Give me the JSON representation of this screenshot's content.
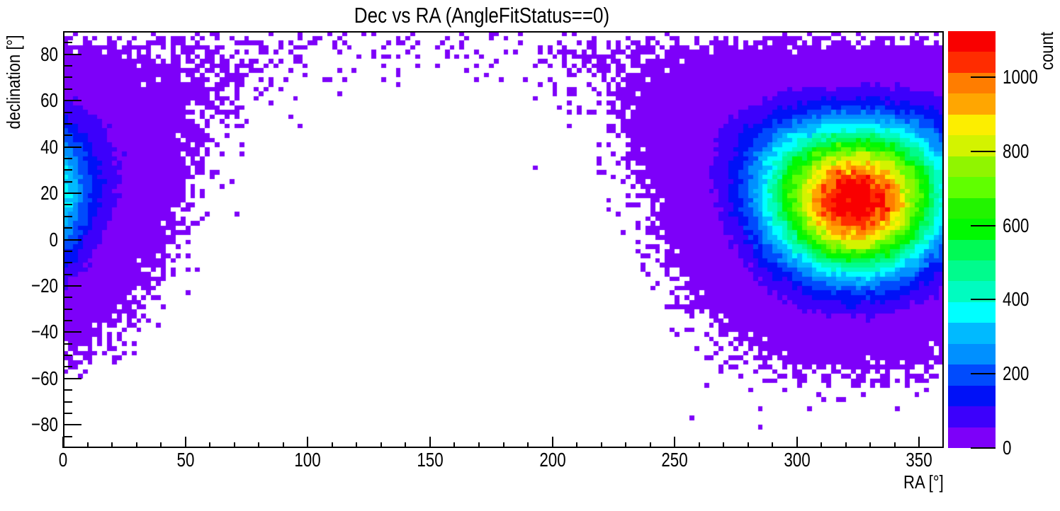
{
  "title": "Dec vs RA (AngleFitStatus==0)",
  "chart_data": {
    "type": "heatmap",
    "title": "Dec vs RA (AngleFitStatus==0)",
    "xlabel": "RA [°]",
    "ylabel": "declination [°]",
    "zlabel": "count",
    "xlim": [
      0,
      360
    ],
    "ylim": [
      -90,
      90
    ],
    "zlim": [
      0,
      1124
    ],
    "grid": false,
    "bins": {
      "x": 180,
      "y": 90,
      "x_width_deg": 2,
      "y_width_deg": 2
    },
    "x_ticks": {
      "values": [
        0,
        50,
        100,
        150,
        200,
        250,
        300,
        350
      ],
      "labels": [
        "0",
        "50",
        "100",
        "150",
        "200",
        "250",
        "300",
        "350"
      ],
      "minor_step_deg": 10
    },
    "y_ticks": {
      "values": [
        80,
        60,
        40,
        20,
        0,
        -20,
        -40,
        -60,
        -80
      ],
      "labels": [
        "80",
        "60",
        "40",
        "20",
        "0",
        "−20",
        "−40",
        "−60",
        "−80"
      ],
      "minor_step_deg": 5
    },
    "z_ticks": {
      "values": [
        0,
        200,
        400,
        600,
        800,
        1000
      ],
      "labels": [
        "0",
        "200",
        "400",
        "600",
        "800",
        "1000"
      ]
    },
    "empty_bin_color": "#ffffff",
    "frame_color": "#000000",
    "palette": [
      "#7d00f9",
      "#3c00fb",
      "#0011f7",
      "#004bfd",
      "#0090ff",
      "#00baff",
      "#00ffff",
      "#00fcc0",
      "#00fb8d",
      "#00fa55",
      "#00f901",
      "#22f400",
      "#60ff00",
      "#90f500",
      "#d3f300",
      "#fcee00",
      "#ffa601",
      "#ff7d00",
      "#ff2c00",
      "#f90000"
    ],
    "model": {
      "description": "2D sky histogram: single source centered at RA 324 deg, Dec +20 deg, peak ~1124 counts/bin, density falling with angular distance (quasi-Gaussian), weighted by cos(dec) bin solid angle; empty toward the antipode (~RA 145 deg, Dec -20 deg) with Poisson-scattered single-count bins in the transition annulus.",
      "center_ra_deg": 324,
      "center_dec_deg": 20,
      "sigma_deg": 24,
      "profile_exponent": 2.2,
      "peak_counts_per_bin": 1124,
      "solid_angle_weight": "cos(dec)",
      "seed": 7
    },
    "colorbar": {
      "position": "right",
      "levels": 20
    }
  }
}
